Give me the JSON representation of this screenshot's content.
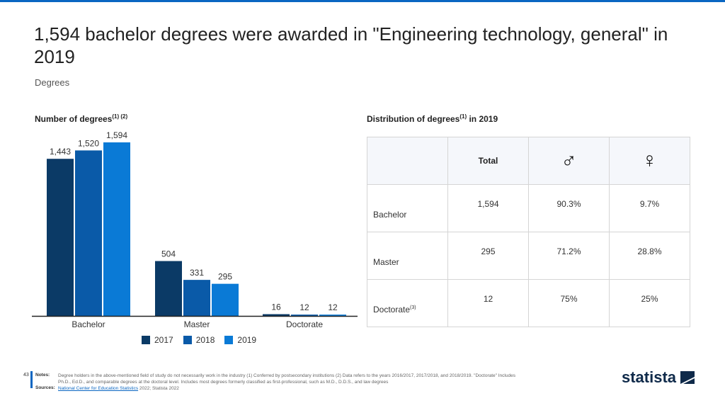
{
  "title": "1,594 bachelor degrees were awarded in \"Engineering technology, general\" in 2019",
  "subtitle": "Degrees",
  "left_heading": "Number of degrees",
  "left_heading_sup": "(1) (2)",
  "right_heading": "Distribution of degrees",
  "right_heading_sup": "(1)",
  "right_heading_suffix": " in 2019",
  "chart_data": {
    "type": "bar",
    "title": "Number of degrees",
    "categories": [
      "Bachelor",
      "Master",
      "Doctorate"
    ],
    "series": [
      {
        "name": "2017",
        "color": "#0b3a66",
        "values": [
          1443,
          504,
          16
        ],
        "labels": [
          "1,443",
          "504",
          "16"
        ]
      },
      {
        "name": "2018",
        "color": "#0a5aa8",
        "values": [
          1520,
          331,
          12
        ],
        "labels": [
          "1,520",
          "331",
          "12"
        ]
      },
      {
        "name": "2019",
        "color": "#0a7ad6",
        "values": [
          1594,
          295,
          12
        ],
        "labels": [
          "1,594",
          "295",
          "12"
        ]
      }
    ],
    "ylim": [
      0,
      1594
    ],
    "grid": false,
    "legend": "bottom"
  },
  "table": {
    "headers": [
      "Total",
      "male-icon",
      "female-icon"
    ],
    "male_symbol": "♂",
    "female_symbol": "♀",
    "rows": [
      {
        "label": "Bachelor",
        "sup": "",
        "total": "1,594",
        "male": "90.3%",
        "female": "9.7%"
      },
      {
        "label": "Master",
        "sup": "",
        "total": "295",
        "male": "71.2%",
        "female": "28.8%"
      },
      {
        "label": "Doctorate",
        "sup": "(3)",
        "total": "12",
        "male": "75%",
        "female": "25%"
      }
    ]
  },
  "footer": {
    "page": "43",
    "notes_label": "Notes:",
    "notes": "Degree holders in the above-mentioned field of study do not necessarily work in the industry (1) Conferred by postsecondary institutions (2) Data refers to the years 2016/2017, 2017/2018, and 2018/2019. \"Doctorate\" Includes Ph.D., Ed.D., and comparable degrees at the doctoral level. Includes most degrees formerly classified as first-professional, such as M.D., D.D.S., and law degrees",
    "sources_label": "Sources:",
    "source_link": "National Center for Education Statistics",
    "source_rest": " 2022; Statista 2022"
  },
  "brand": "statista"
}
